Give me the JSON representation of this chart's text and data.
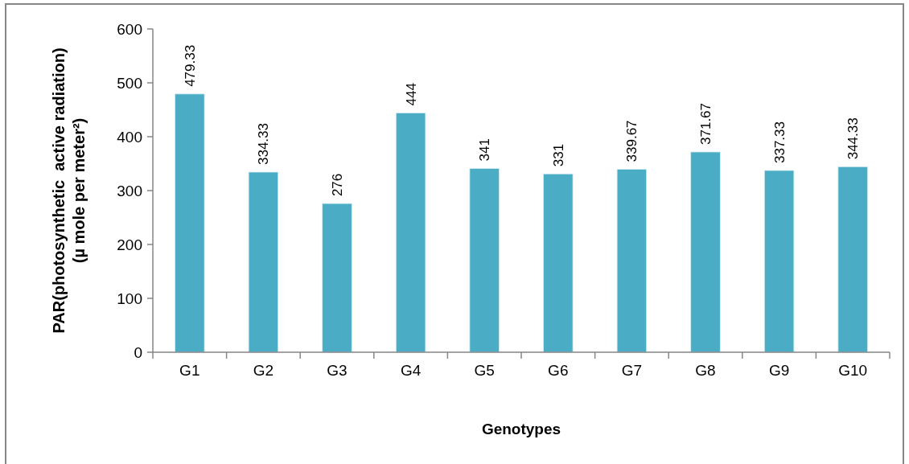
{
  "chart_data": {
    "type": "bar",
    "xlabel": "Genotypes",
    "ylabel": "PAR(photosynthetic  active radiation)\n(µ mole per meter²)",
    "categories": [
      "G1",
      "G2",
      "G3",
      "G4",
      "G5",
      "G6",
      "G7",
      "G8",
      "G9",
      "G10"
    ],
    "values": [
      479.33,
      334.33,
      276,
      444,
      341,
      331,
      339.67,
      371.67,
      337.33,
      344.33
    ],
    "color": "#4bacc6",
    "ylim": [
      0,
      600
    ],
    "yticks": [
      0,
      100,
      200,
      300,
      400,
      500,
      600
    ],
    "data_labels": true
  }
}
